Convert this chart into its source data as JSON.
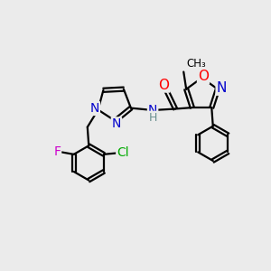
{
  "background_color": "#ebebeb",
  "bond_color": "#000000",
  "atom_colors": {
    "N": "#0000cc",
    "O": "#ff0000",
    "F": "#cc00cc",
    "Cl": "#00aa00",
    "C": "#000000",
    "H": "#6a9090"
  },
  "font_size": 10,
  "lw": 1.6
}
